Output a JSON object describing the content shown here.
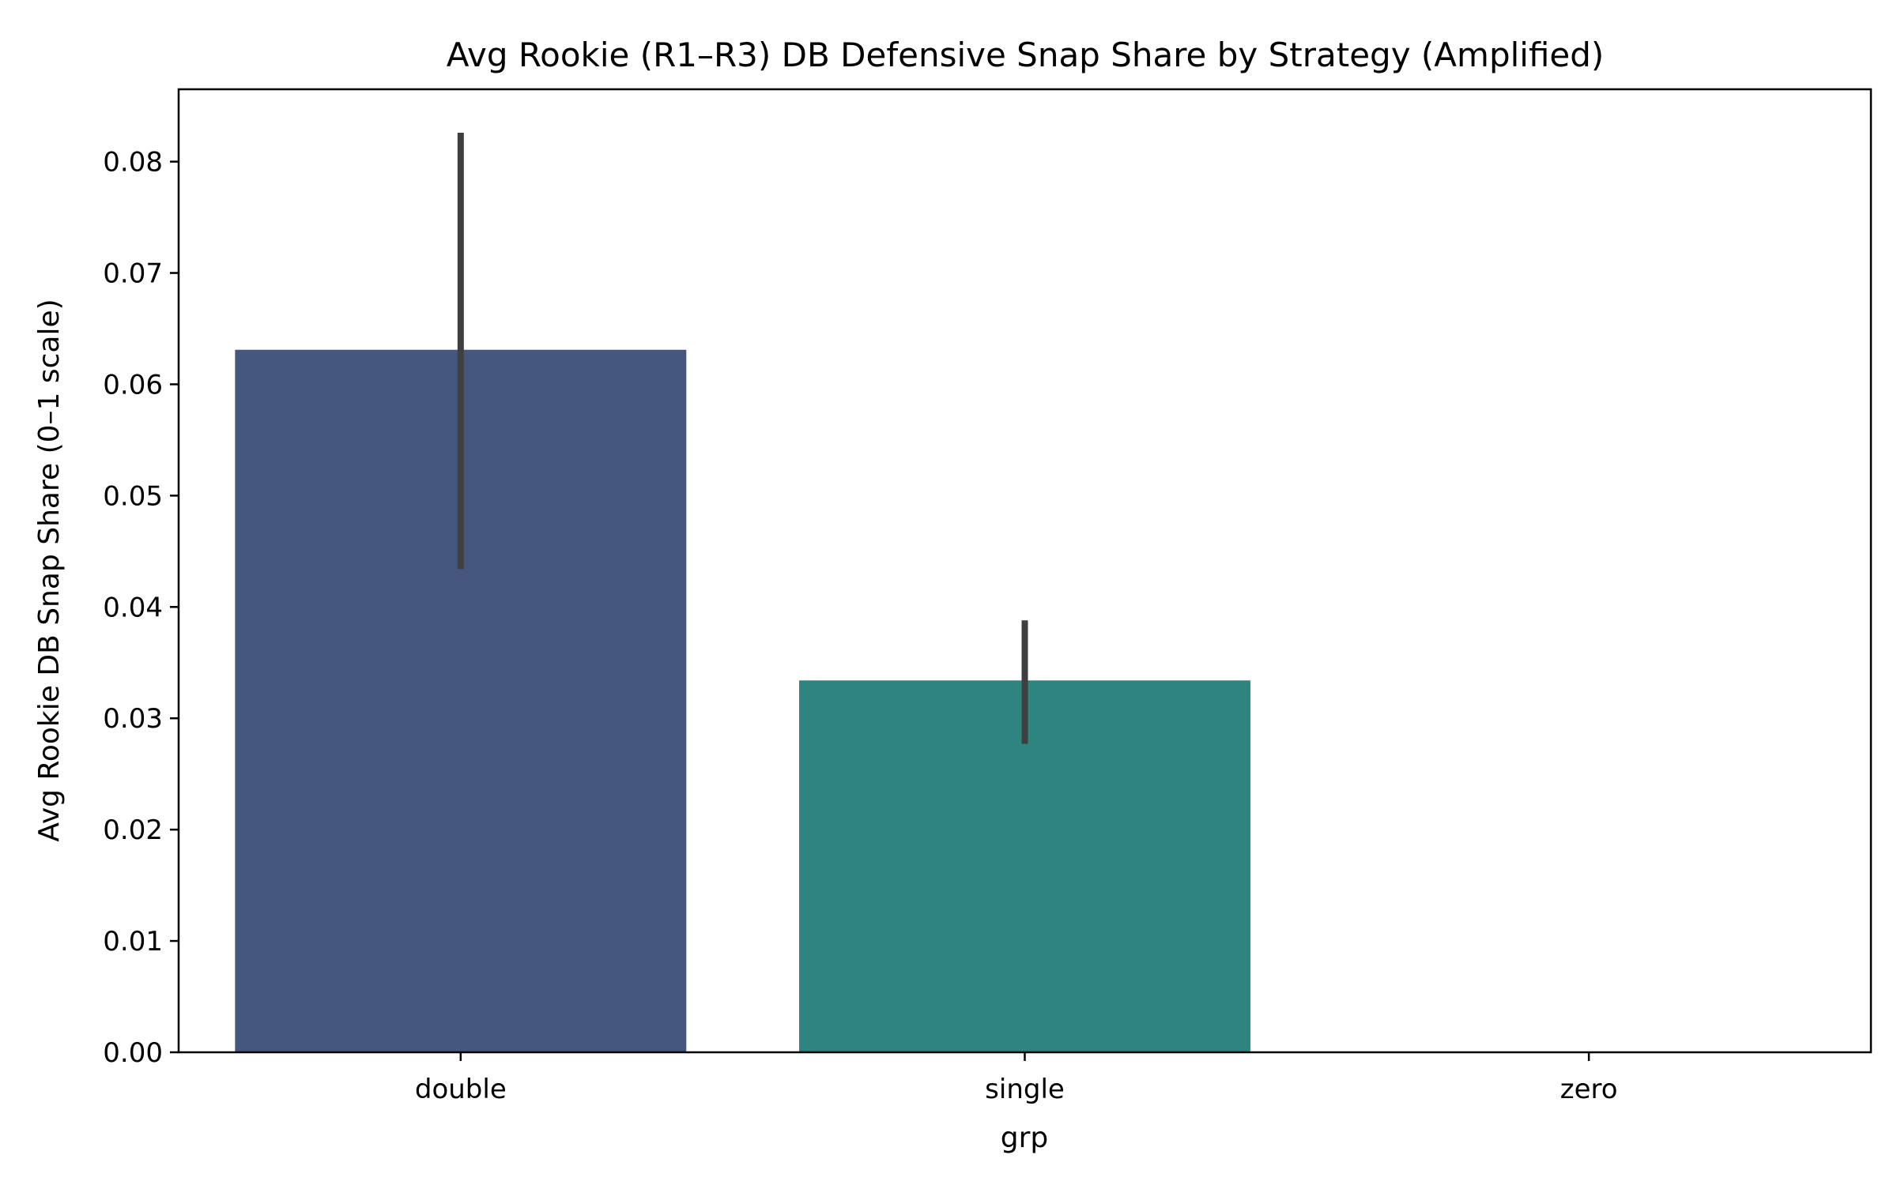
{
  "chart_data": {
    "type": "bar",
    "title": "Avg Rookie (R1–R3) DB Defensive Snap Share by Strategy (Amplified)",
    "xlabel": "grp",
    "ylabel": "Avg Rookie DB Snap Share (0–1 scale)",
    "categories": [
      "double",
      "single",
      "zero"
    ],
    "values": [
      0.0631,
      0.0334,
      0.0
    ],
    "error_bars": [
      {
        "low": 0.0434,
        "high": 0.0826
      },
      {
        "low": 0.0277,
        "high": 0.0388
      },
      null
    ],
    "ylim": [
      0,
      0.0865
    ],
    "yticks": [
      0.0,
      0.01,
      0.02,
      0.03,
      0.04,
      0.05,
      0.06,
      0.07,
      0.08
    ],
    "ytick_labels": [
      "0.00",
      "0.01",
      "0.02",
      "0.03",
      "0.04",
      "0.05",
      "0.06",
      "0.07",
      "0.08"
    ],
    "colors": [
      "#46577f",
      "#2e847e",
      "#2aa37a"
    ],
    "errorbar_color": "#3f3f3f",
    "grid": false,
    "legend": "none"
  }
}
